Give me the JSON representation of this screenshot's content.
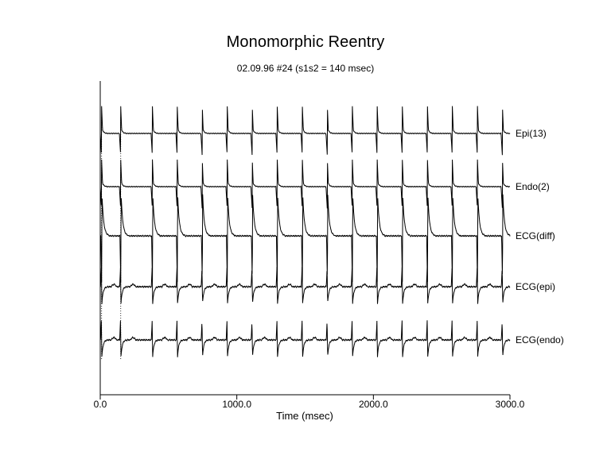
{
  "chart_data": {
    "type": "line",
    "title": "Monomorphic Reentry",
    "subtitle": "02.09.96  #24 (s1s2 = 140 msec)",
    "xlabel": "Time (msec)",
    "ylabel": "",
    "xlim": [
      0,
      3000
    ],
    "x_ticks": [
      0,
      1000,
      2000,
      3000
    ],
    "x_tick_labels": [
      "0.0",
      "1000.0",
      "2000.0",
      "3000.0"
    ],
    "grid": false,
    "legend": "none",
    "line_color": "#000000",
    "stimulus_times_msec": [
      10,
      150
    ],
    "beat_times_msec": [
      382,
      564,
      747,
      930,
      1113,
      1296,
      1480,
      1663,
      1846,
      2028,
      2212,
      2396,
      2578,
      2762,
      2945
    ],
    "series": [
      {
        "name": "Epi(13)",
        "waveform": "activation"
      },
      {
        "name": "Endo(2)",
        "waveform": "activation"
      },
      {
        "name": "ECG(diff)",
        "waveform": "differential"
      },
      {
        "name": "ECG(epi)",
        "waveform": "electrogram"
      },
      {
        "name": "ECG(endo)",
        "waveform": "electrogram"
      }
    ]
  }
}
